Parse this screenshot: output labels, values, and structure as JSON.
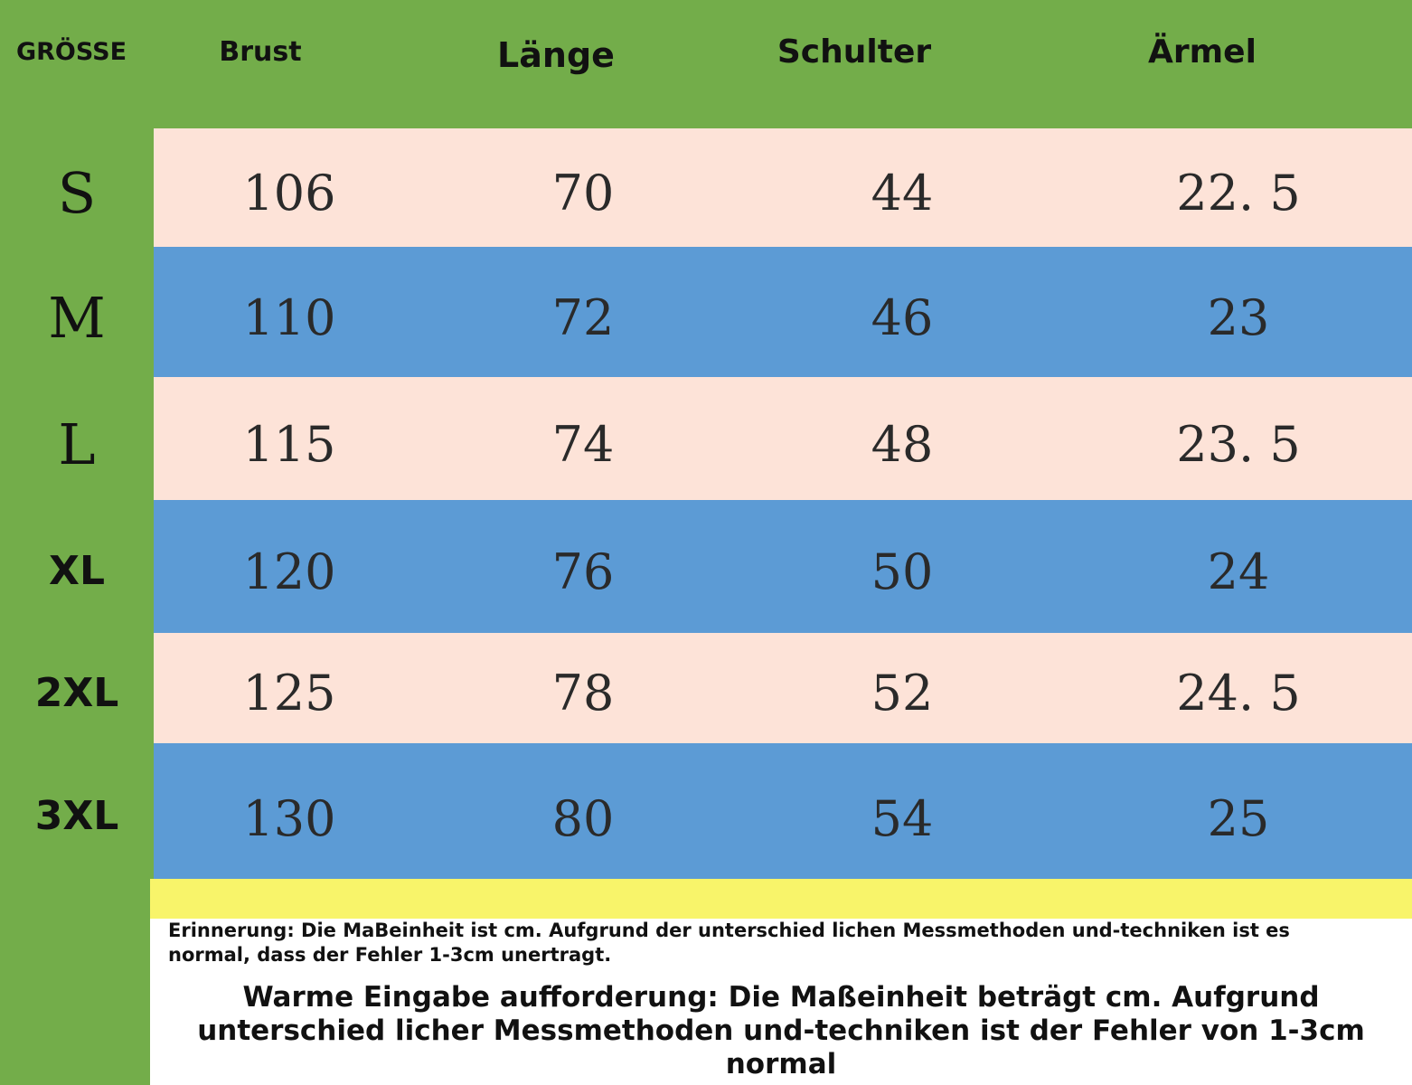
{
  "colors": {
    "header_bg": "#73ad4a",
    "row_light": "#fde3d8",
    "row_blue": "#5c9bd5",
    "notice_bar": "#f8f46a"
  },
  "headers": {
    "size": "GRÖSSE",
    "brust": "Brust",
    "laenge": "Länge",
    "schulter": "Schulter",
    "aermel": "Ärmel"
  },
  "rows": [
    {
      "size": "S",
      "brust": "106",
      "laenge": "70",
      "schulter": "44",
      "aermel": "22. 5"
    },
    {
      "size": "M",
      "brust": "110",
      "laenge": "72",
      "schulter": "46",
      "aermel": "23"
    },
    {
      "size": "L",
      "brust": "115",
      "laenge": "74",
      "schulter": "48",
      "aermel": "23. 5"
    },
    {
      "size": "XL",
      "brust": "120",
      "laenge": "76",
      "schulter": "50",
      "aermel": "24"
    },
    {
      "size": "2XL",
      "brust": "125",
      "laenge": "78",
      "schulter": "52",
      "aermel": "24. 5"
    },
    {
      "size": "3XL",
      "brust": "130",
      "laenge": "80",
      "schulter": "54",
      "aermel": "25"
    }
  ],
  "notes": {
    "reminder": "Erinnerung: Die MaBeinheit ist cm. Aufgrund der unterschied lichen Messmethoden und-techniken ist es normal, dass der Fehler 1-3cm unertragt.",
    "warm_notice": "Warme Eingabe aufforderung: Die Maßeinheit beträgt cm. Aufgrund unterschied licher Messmethoden und-techniken ist der Fehler von 1-3cm normal"
  }
}
